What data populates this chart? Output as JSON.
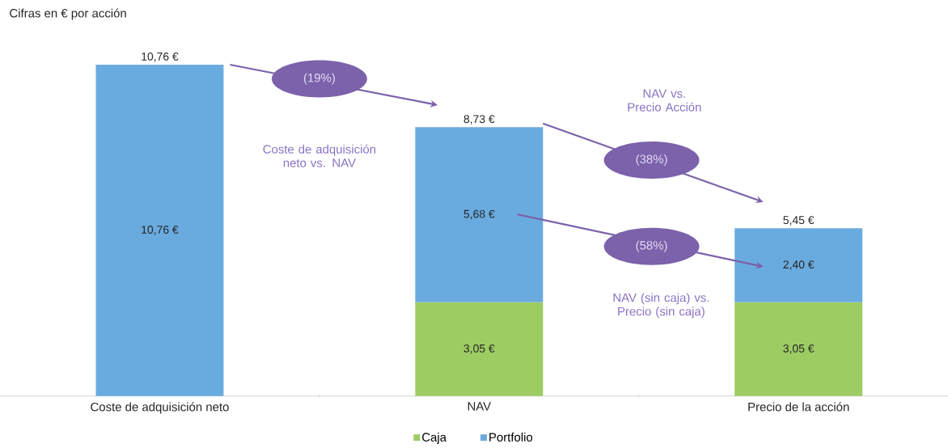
{
  "chart_data": {
    "type": "bar",
    "stacked": true,
    "title": "Cifras en € por acción",
    "categories": [
      "Coste de adquisición neto",
      "NAV",
      "Precio de la acción"
    ],
    "series": [
      {
        "name": "Caja",
        "color": "#9dcc63",
        "values": [
          null,
          3.05,
          3.05
        ],
        "value_labels": [
          null,
          "3,05 €",
          "3,05 €"
        ]
      },
      {
        "name": "Portfolio",
        "color": "#6aabdf",
        "values": [
          10.76,
          5.68,
          2.4
        ],
        "value_labels": [
          "10,76 €",
          "5,68 €",
          "2,40 €"
        ]
      }
    ],
    "totals": [
      "10,76 €",
      "8,73 €",
      "5,45 €"
    ],
    "annotations": [
      "(19%)",
      "Coste de adquisición neto vs. NAV",
      "(38%)",
      "NAV vs. Precio Acción",
      "(58%)",
      "NAV (sin caja) vs. Precio (sin caja)"
    ],
    "legend": "bottom"
  }
}
